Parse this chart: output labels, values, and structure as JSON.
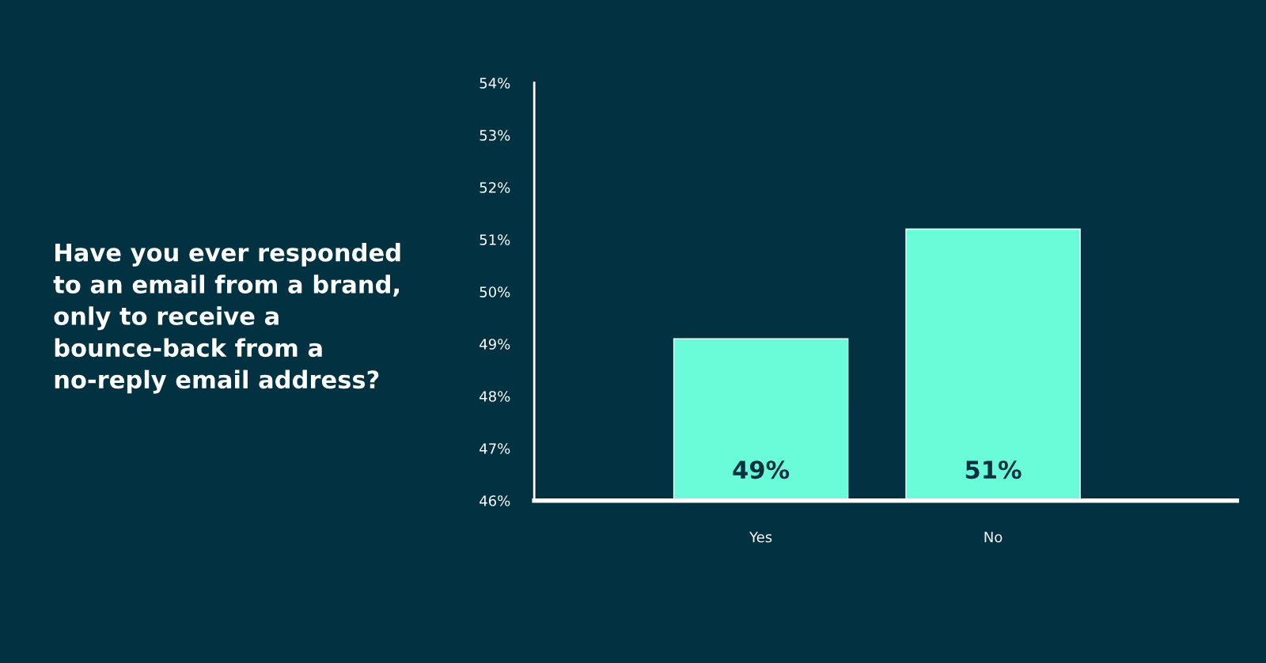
{
  "chart_data": {
    "type": "bar",
    "title": "Have you ever responded\nto an email from a brand,\nonly to receive a\nbounce-back from a\nno-reply email address?",
    "categories": [
      "Yes",
      "No"
    ],
    "values": [
      49.1,
      51.2
    ],
    "value_labels": [
      "49%",
      "51%"
    ],
    "color": "#6afcd9",
    "ylim": [
      46,
      54
    ],
    "yticks": [
      {
        "value": 46,
        "label": "46%"
      },
      {
        "value": 47,
        "label": "47%"
      },
      {
        "value": 48,
        "label": "48%"
      },
      {
        "value": 49,
        "label": "49%"
      },
      {
        "value": 50,
        "label": "50%"
      },
      {
        "value": 51,
        "label": "51%"
      },
      {
        "value": 52,
        "label": "52%"
      },
      {
        "value": 53,
        "label": "53%"
      },
      {
        "value": 54,
        "label": "54%"
      }
    ],
    "grid": false,
    "legend": false
  }
}
